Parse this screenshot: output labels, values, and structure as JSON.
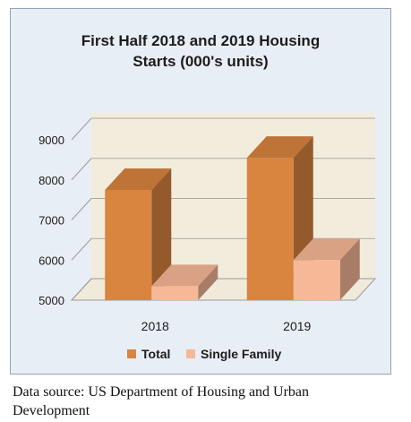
{
  "chart_data": {
    "type": "bar",
    "title": "First Half 2018 and 2019 Housing\nStarts (000's units)",
    "categories": [
      "2018",
      "2019"
    ],
    "series": [
      {
        "name": "Total",
        "values": [
          7750,
          8550
        ],
        "color": "#d9843f"
      },
      {
        "name": "Single Family",
        "values": [
          5350,
          6000
        ],
        "color": "#f7b897"
      }
    ],
    "y_ticks": [
      "5000",
      "6000",
      "7000",
      "8000",
      "9000"
    ],
    "ylim": [
      5000,
      9000
    ],
    "grid": true,
    "style": "3d-clustered-column",
    "legend_position": "bottom"
  },
  "caption": {
    "line1": "Data source: US Department of Housing and Urban",
    "line2": "Development"
  }
}
